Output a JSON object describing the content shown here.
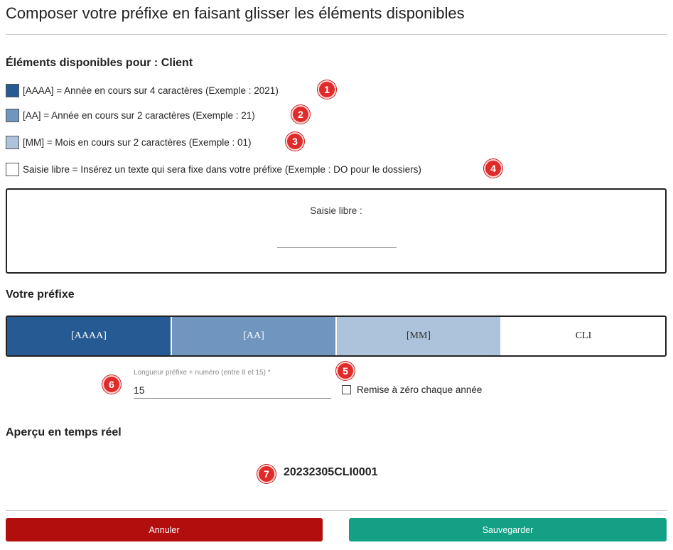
{
  "header": {
    "title": "Composer votre préfixe en faisant glisser les éléments disponibles"
  },
  "available": {
    "title": "Éléments disponibles pour : Client",
    "items": [
      {
        "label": "[AAAA] = Année en cours sur 4 caractères (Exemple : 2021)",
        "color": "#255a92",
        "badge": "1"
      },
      {
        "label": "[AA] = Année en cours sur 2 caractères (Exemple : 21)",
        "color": "#7095be",
        "badge": "2"
      },
      {
        "label": "[MM] = Mois en cours sur 2 caractères (Exemple : 01)",
        "color": "#adc3db",
        "badge": "3"
      },
      {
        "label": "Saisie libre = Insérez un texte qui sera fixe dans votre préfixe (Exemple : DO pour le dossiers)",
        "color": "#ffffff",
        "badge": "4"
      }
    ]
  },
  "free_input": {
    "label": "Saisie libre :",
    "value": ""
  },
  "prefix": {
    "title": "Votre préfixe",
    "segments": [
      {
        "label": "[AAAA]",
        "color": "#255a92",
        "text_color": "#ffffff"
      },
      {
        "label": "[AA]",
        "color": "#7095be",
        "text_color": "#ffffff"
      },
      {
        "label": "[MM]",
        "color": "#adc3db",
        "text_color": "#333333"
      },
      {
        "label": "CLI",
        "color": "#ffffff",
        "text_color": "#222222"
      }
    ]
  },
  "length_field": {
    "label": "Longueur préfixe + numéro (entre 8 et 15) *",
    "value": "15",
    "badge": "6"
  },
  "reset_option": {
    "label": "Remise à zéro chaque année",
    "checked": false,
    "badge": "5"
  },
  "preview": {
    "title": "Aperçu en temps réel",
    "value": "20232305CLI0001",
    "badge": "7"
  },
  "buttons": {
    "cancel": "Annuler",
    "save": "Sauvegarder"
  },
  "colors": {
    "cancel": "#b20e0e",
    "save": "#14a085",
    "badge": "#e02b2b"
  }
}
